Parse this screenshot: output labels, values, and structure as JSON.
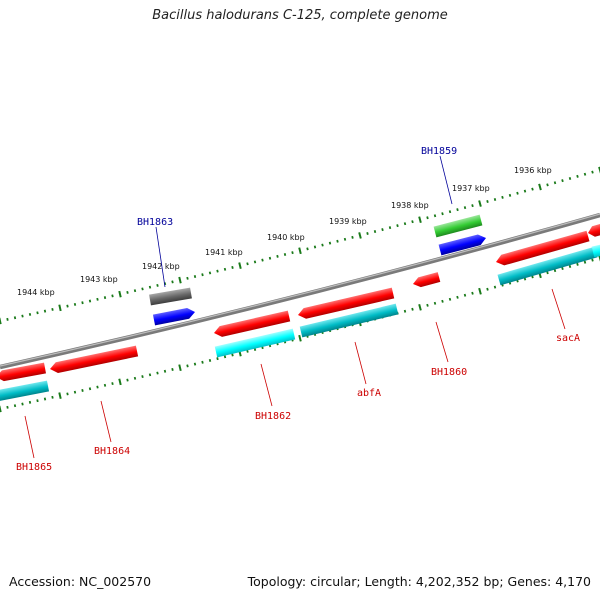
{
  "title": "Bacillus halodurans C-125, complete genome",
  "footer": {
    "accession": "Accession: NC_002570",
    "topology": "Topology: circular; Length: 4,202,352 bp; Genes: 4,170"
  },
  "colors": {
    "backbone": "#808080",
    "tick": "#1a7a1a",
    "label_red": "#cc0000",
    "label_blue": "#000099",
    "red": "#ff0000",
    "cyan": "#00c8d2",
    "bright_cyan": "#00ffff",
    "blue": "#0000ff",
    "green": "#33cc33",
    "gray": "#666666"
  },
  "tick_labels": [
    "1944 kbp",
    "1943 kbp",
    "1942 kbp",
    "1941 kbp",
    "1940 kbp",
    "1939 kbp",
    "1938 kbp",
    "1937 kbp",
    "1936 kbp"
  ],
  "gene_labels": {
    "BH1865": "BH1865",
    "BH1864": "BH1864",
    "BH1863": "BH1863",
    "BH1862": "BH1862",
    "abfA": "abfA",
    "BH1860": "BH1860",
    "BH1859": "BH1859",
    "sacA": "sacA"
  }
}
